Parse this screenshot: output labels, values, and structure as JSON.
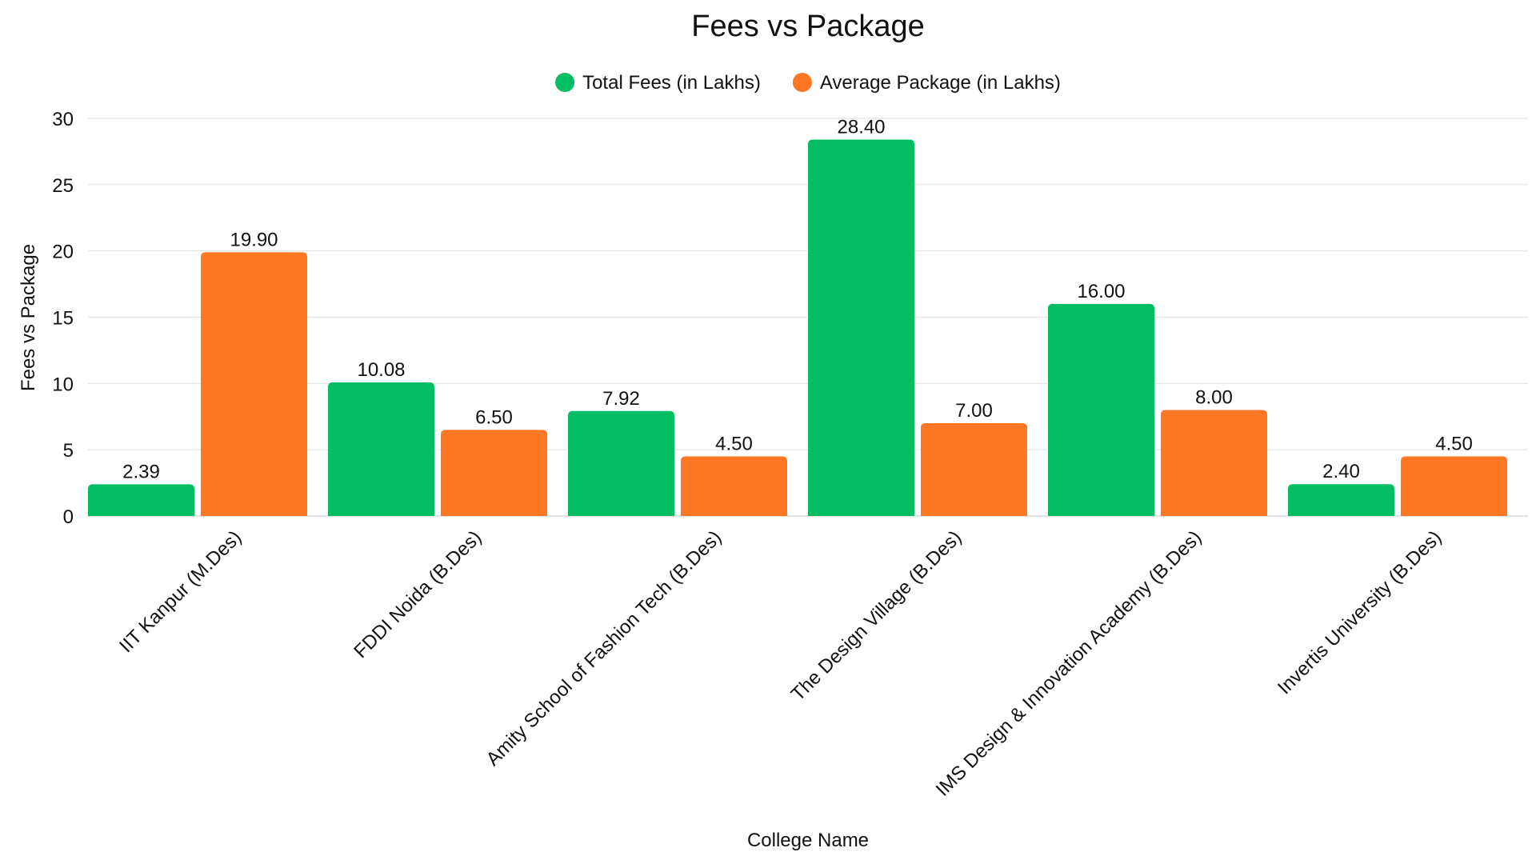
{
  "chart_data": {
    "type": "bar",
    "title": "Fees vs Package",
    "xlabel": "College Name",
    "ylabel": "Fees vs Package",
    "ylim": [
      0,
      30
    ],
    "yticks": [
      0,
      5,
      10,
      15,
      20,
      25,
      30
    ],
    "grid": true,
    "legend_position": "top-center",
    "categories": [
      "IIT Kanpur (M.Des)",
      "FDDI Noida (B.Des)",
      "Amity School of Fashion Tech (B.Des)",
      "The Design Village (B.Des)",
      "IMS Design & Innovation Academy (B.Des)",
      "Invertis University (B.Des)"
    ],
    "series": [
      {
        "name": "Total Fees (in Lakhs)",
        "color": "#05BD62",
        "values": [
          2.39,
          10.08,
          7.92,
          28.4,
          16.0,
          2.4
        ],
        "labels": [
          "2.39",
          "10.08",
          "7.92",
          "28.40",
          "16.00",
          "2.40"
        ]
      },
      {
        "name": "Average Package (in Lakhs)",
        "color": "#FF7623",
        "values": [
          19.9,
          6.5,
          4.5,
          7.0,
          8.0,
          4.5
        ],
        "labels": [
          "19.90",
          "6.50",
          "4.50",
          "7.00",
          "8.00",
          "4.50"
        ]
      }
    ]
  }
}
